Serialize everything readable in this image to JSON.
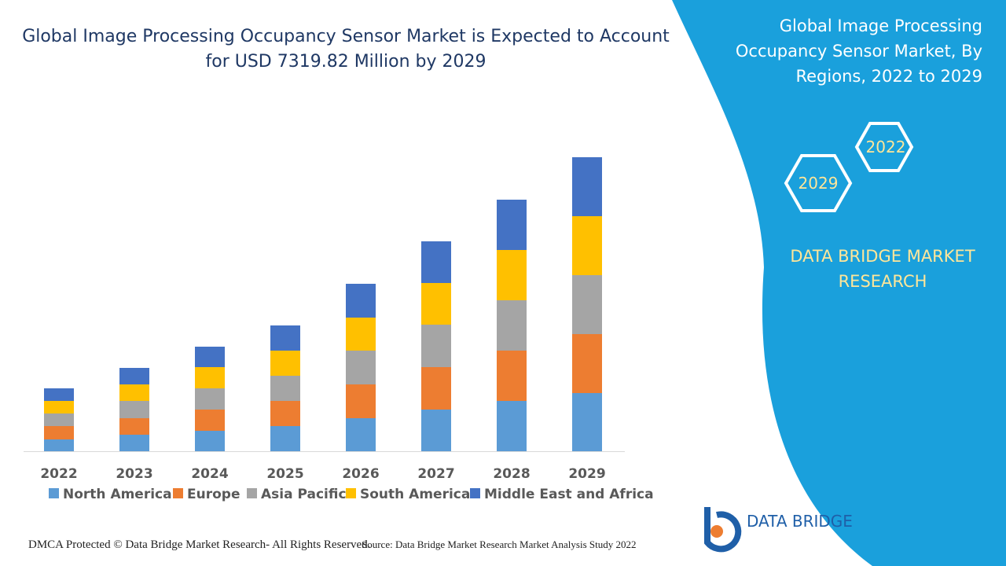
{
  "chart_data": {
    "type": "stacked_bar",
    "title_lines": [
      "Global Image Processing Occupancy Sensor Market is Expected to Account",
      "for USD 7319.82 Million by 2029"
    ],
    "categories": [
      "2022",
      "2023",
      "2024",
      "2025",
      "2026",
      "2027",
      "2028",
      "2029"
    ],
    "series": [
      {
        "name": "North America",
        "color": "#5b9bd5",
        "values": [
          15,
          21,
          26,
          32,
          42,
          53,
          64,
          74
        ]
      },
      {
        "name": "Europe",
        "color": "#ed7d31",
        "values": [
          17,
          21,
          27,
          32,
          43,
          54,
          64,
          75
        ]
      },
      {
        "name": "Asia Pacific",
        "color": "#a5a5a5",
        "values": [
          16,
          22,
          27,
          32,
          43,
          54,
          64,
          75
        ]
      },
      {
        "name": "South America",
        "color": "#ffc000",
        "values": [
          16,
          21,
          27,
          32,
          42,
          53,
          64,
          75
        ]
      },
      {
        "name": "Middle East and Africa",
        "color": "#4472c4",
        "values": [
          16,
          21,
          26,
          32,
          43,
          53,
          64,
          75
        ]
      }
    ]
  },
  "panel": {
    "title_lines": [
      "Global Image Processing",
      "Occupancy Sensor Market, By",
      "Regions, 2022 to 2029"
    ],
    "hex_labels": [
      "2022",
      "2029"
    ],
    "brand_lines": [
      "DATA BRIDGE MARKET",
      "RESEARCH"
    ]
  },
  "logo": {
    "text": "DATA BRIDGE"
  },
  "footer": {
    "left": "DMCA Protected © Data Bridge Market Research- All Rights Reserved.",
    "right": "Source: Data Bridge Market Research Market Analysis Study 2022"
  }
}
